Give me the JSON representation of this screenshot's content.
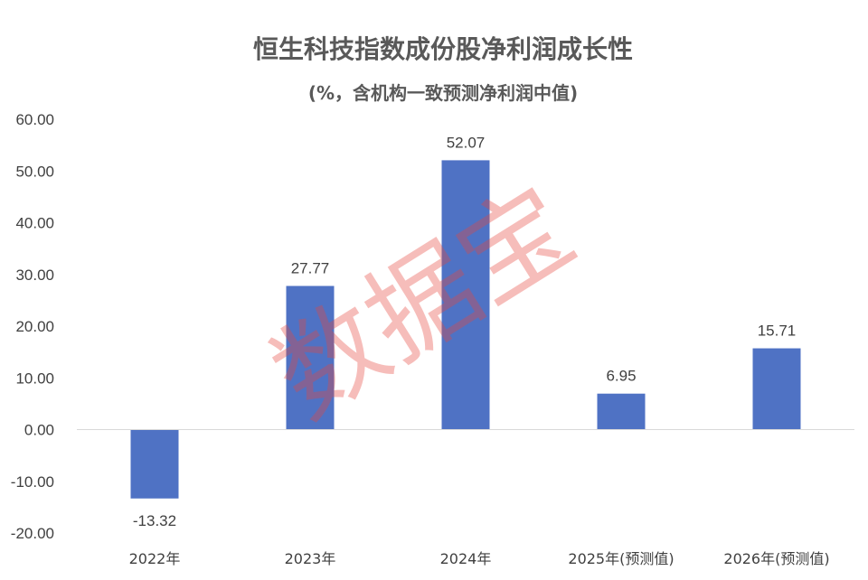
{
  "chart_data": {
    "type": "bar",
    "title": "恒生科技指数成份股净利润成长性",
    "subtitle": "(%，含机构一致预测净利润中值)",
    "categories": [
      "2022年",
      "2023年",
      "2024年",
      "2025年(预测值)",
      "2026年(预测值)"
    ],
    "values": [
      -13.32,
      27.77,
      52.07,
      6.95,
      15.71
    ],
    "data_labels": [
      "-13.32",
      "27.77",
      "52.07",
      "6.95",
      "15.71"
    ],
    "yticks": [
      "60.00",
      "50.00",
      "40.00",
      "30.00",
      "20.00",
      "10.00",
      "0.00",
      "-10.00",
      "-20.00"
    ],
    "ylim": [
      -20,
      60
    ],
    "xlabel": "",
    "ylabel": "",
    "grid": false,
    "bar_color": "#4f72c4",
    "watermark": "数据宝",
    "watermark_color": "#e8463c"
  }
}
